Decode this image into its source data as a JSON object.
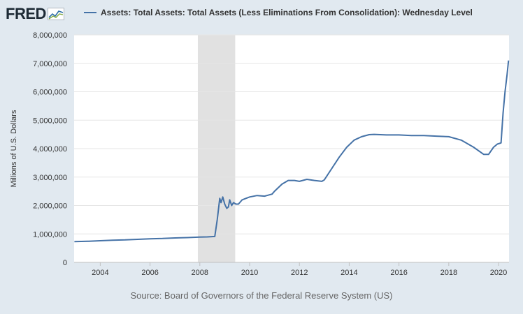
{
  "header": {
    "logo_text": "FRED",
    "logo_icon": "fred-line-graph-icon"
  },
  "colors": {
    "background": "#e1e9f0",
    "plot_background": "#ffffff",
    "series": "#4572a7",
    "recession_shade": "#e1e1e1",
    "grid": "#e6e6e6"
  },
  "source": "Source: Board of Governors of the Federal Reserve System (US)",
  "chart_data": {
    "type": "line",
    "title": "",
    "xlabel": "",
    "ylabel": "Millions of U.S. Dollars",
    "xlim": [
      2002.95,
      2020.42
    ],
    "ylim": [
      0,
      8000000
    ],
    "y_ticks": [
      0,
      1000000,
      2000000,
      3000000,
      4000000,
      5000000,
      6000000,
      7000000,
      8000000
    ],
    "y_tick_labels": [
      "0",
      "1,000,000",
      "2,000,000",
      "3,000,000",
      "4,000,000",
      "5,000,000",
      "6,000,000",
      "7,000,000",
      "8,000,000"
    ],
    "x_ticks": [
      2004,
      2006,
      2008,
      2010,
      2012,
      2014,
      2016,
      2018,
      2020
    ],
    "x_tick_labels": [
      "2004",
      "2006",
      "2008",
      "2010",
      "2012",
      "2014",
      "2016",
      "2018",
      "2020"
    ],
    "grid": "horizontal",
    "legend_position": "top",
    "recessions": [
      [
        2007.92,
        2009.42
      ]
    ],
    "series": [
      {
        "name": "Assets: Total Assets: Total Assets (Less Eliminations From Consolidation): Wednesday Level",
        "x": [
          2002.96,
          2003.5,
          2004.0,
          2004.5,
          2005.0,
          2005.5,
          2006.0,
          2006.5,
          2007.0,
          2007.5,
          2008.0,
          2008.3,
          2008.6,
          2008.7,
          2008.8,
          2008.85,
          2008.92,
          2009.0,
          2009.08,
          2009.15,
          2009.2,
          2009.28,
          2009.35,
          2009.45,
          2009.55,
          2009.7,
          2009.85,
          2010.0,
          2010.3,
          2010.6,
          2010.9,
          2011.0,
          2011.3,
          2011.55,
          2011.8,
          2012.0,
          2012.3,
          2012.6,
          2012.9,
          2013.0,
          2013.3,
          2013.6,
          2013.9,
          2014.2,
          2014.5,
          2014.8,
          2015.0,
          2015.5,
          2016.0,
          2016.5,
          2017.0,
          2017.5,
          2018.0,
          2018.5,
          2019.0,
          2019.4,
          2019.6,
          2019.8,
          2019.95,
          2020.1,
          2020.18,
          2020.26,
          2020.34,
          2020.4
        ],
        "y": [
          730000,
          740000,
          760000,
          780000,
          790000,
          810000,
          830000,
          840000,
          860000,
          870000,
          890000,
          895000,
          910000,
          1500000,
          2250000,
          2100000,
          2300000,
          2050000,
          1900000,
          1950000,
          2200000,
          2000000,
          2100000,
          2050000,
          2050000,
          2200000,
          2250000,
          2300000,
          2350000,
          2330000,
          2400000,
          2500000,
          2750000,
          2880000,
          2880000,
          2850000,
          2920000,
          2880000,
          2850000,
          2900000,
          3300000,
          3700000,
          4050000,
          4300000,
          4420000,
          4490000,
          4500000,
          4480000,
          4480000,
          4460000,
          4460000,
          4440000,
          4420000,
          4300000,
          4050000,
          3800000,
          3800000,
          4050000,
          4160000,
          4200000,
          5250000,
          6000000,
          6600000,
          7100000
        ]
      }
    ]
  }
}
